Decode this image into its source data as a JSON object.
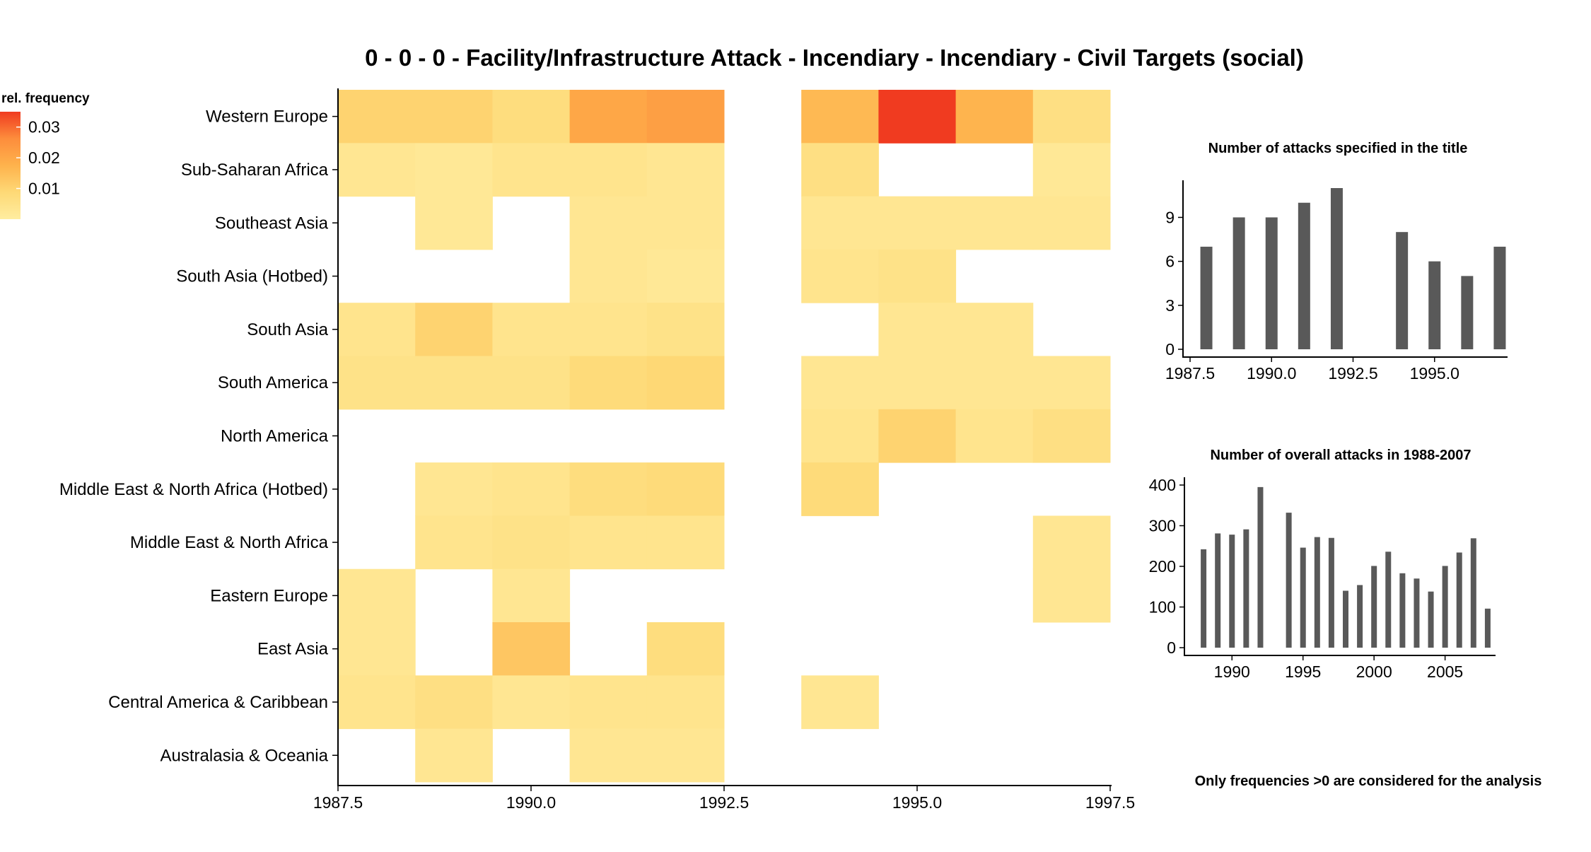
{
  "title": "0 - 0 - 0 - Facility/Infrastructure Attack - Incendiary - Incendiary - Civil Targets (social)",
  "legend": {
    "title": "rel. frequency",
    "ticks": [
      {
        "value": 0.03,
        "label": "0.03"
      },
      {
        "value": 0.02,
        "label": "0.02"
      },
      {
        "value": 0.01,
        "label": "0.01"
      }
    ],
    "range": [
      0,
      0.035
    ],
    "colors": [
      "#ffeda0",
      "#fed976",
      "#feb24c",
      "#fd8d3c",
      "#f03b20"
    ]
  },
  "footnote": "Only frequencies >0 are considered for the analysis",
  "chart_data": [
    {
      "type": "heatmap",
      "title": "0 - 0 - 0 - Facility/Infrastructure Attack - Incendiary - Incendiary - Civil Targets (social)",
      "x_ticks": [
        {
          "value": 1987.5,
          "label": "1987.5"
        },
        {
          "value": 1990.0,
          "label": "1990.0"
        },
        {
          "value": 1992.5,
          "label": "1992.5"
        },
        {
          "value": 1995.0,
          "label": "1995.0"
        },
        {
          "value": 1997.5,
          "label": "1997.5"
        }
      ],
      "xlim": [
        1987.5,
        1997.5
      ],
      "years": [
        1988,
        1989,
        1990,
        1991,
        1992,
        1993,
        1994,
        1995,
        1996,
        1997
      ],
      "rows": [
        "Western Europe",
        "Sub-Saharan Africa",
        "Southeast Asia",
        "South Asia (Hotbed)",
        "South Asia",
        "South America",
        "North America",
        "Middle East & North Africa (Hotbed)",
        "Middle East & North Africa",
        "Eastern Europe",
        "East Asia",
        "Central America & Caribbean",
        "Australasia & Oceania"
      ],
      "values": [
        [
          0.01,
          0.01,
          0.007,
          0.02,
          0.022,
          null,
          0.016,
          0.035,
          0.017,
          0.006
        ],
        [
          0.003,
          0.002,
          0.004,
          0.004,
          0.003,
          null,
          0.006,
          null,
          null,
          0.002
        ],
        [
          null,
          0.002,
          null,
          0.003,
          0.003,
          null,
          0.003,
          0.003,
          0.003,
          0.003
        ],
        [
          null,
          null,
          null,
          0.003,
          0.002,
          null,
          0.004,
          0.005,
          null,
          null
        ],
        [
          0.004,
          0.01,
          0.004,
          0.004,
          0.005,
          null,
          null,
          0.003,
          0.003,
          null
        ],
        [
          0.005,
          0.005,
          0.005,
          0.008,
          0.009,
          null,
          0.003,
          0.003,
          0.003,
          0.003
        ],
        [
          null,
          null,
          null,
          null,
          null,
          null,
          0.004,
          0.01,
          0.004,
          0.006
        ],
        [
          null,
          0.003,
          0.004,
          0.007,
          0.008,
          null,
          0.008,
          null,
          null,
          null
        ],
        [
          null,
          0.004,
          0.005,
          0.004,
          0.004,
          null,
          null,
          null,
          null,
          0.003
        ],
        [
          0.003,
          null,
          0.003,
          null,
          null,
          null,
          null,
          null,
          null,
          0.003
        ],
        [
          0.003,
          null,
          0.013,
          null,
          0.007,
          null,
          null,
          null,
          null,
          null
        ],
        [
          0.004,
          0.006,
          0.003,
          0.004,
          0.004,
          null,
          0.003,
          null,
          null,
          null
        ],
        [
          null,
          0.003,
          null,
          0.003,
          0.003,
          null,
          null,
          null,
          null,
          null
        ]
      ]
    },
    {
      "type": "bar",
      "title": "Number of attacks specified in the title",
      "x": [
        1988,
        1989,
        1990,
        1991,
        1992,
        1994,
        1995,
        1996,
        1997
      ],
      "values": [
        7,
        9,
        9,
        10,
        11,
        8,
        6,
        5,
        7
      ],
      "xlim": [
        1987.5,
        1997.5
      ],
      "ylim": [
        0,
        11
      ],
      "x_ticks": [
        {
          "value": 1987.5,
          "label": "1987.5"
        },
        {
          "value": 1990.0,
          "label": "1990.0"
        },
        {
          "value": 1992.5,
          "label": "1992.5"
        },
        {
          "value": 1995.0,
          "label": "1995.0"
        }
      ],
      "y_ticks": [
        {
          "value": 0,
          "label": "0"
        },
        {
          "value": 3,
          "label": "3"
        },
        {
          "value": 6,
          "label": "6"
        },
        {
          "value": 9,
          "label": "9"
        }
      ]
    },
    {
      "type": "bar",
      "title": "Number of overall attacks in 1988-2007",
      "x": [
        1988,
        1989,
        1990,
        1991,
        1992,
        1994,
        1995,
        1996,
        1997,
        1998,
        1999,
        2000,
        2001,
        2002,
        2003,
        2004,
        2005,
        2006,
        2007,
        2008
      ],
      "values": [
        242,
        281,
        278,
        291,
        395,
        332,
        246,
        272,
        270,
        140,
        154,
        201,
        236,
        183,
        170,
        138,
        201,
        234,
        269,
        96
      ],
      "xlim": [
        1987,
        2009
      ],
      "ylim": [
        0,
        400
      ],
      "x_ticks": [
        {
          "value": 1990,
          "label": "1990"
        },
        {
          "value": 1995,
          "label": "1995"
        },
        {
          "value": 2000,
          "label": "2000"
        },
        {
          "value": 2005,
          "label": "2005"
        }
      ],
      "y_ticks": [
        {
          "value": 0,
          "label": "0"
        },
        {
          "value": 100,
          "label": "100"
        },
        {
          "value": 200,
          "label": "200"
        },
        {
          "value": 300,
          "label": "300"
        },
        {
          "value": 400,
          "label": "400"
        }
      ]
    }
  ]
}
